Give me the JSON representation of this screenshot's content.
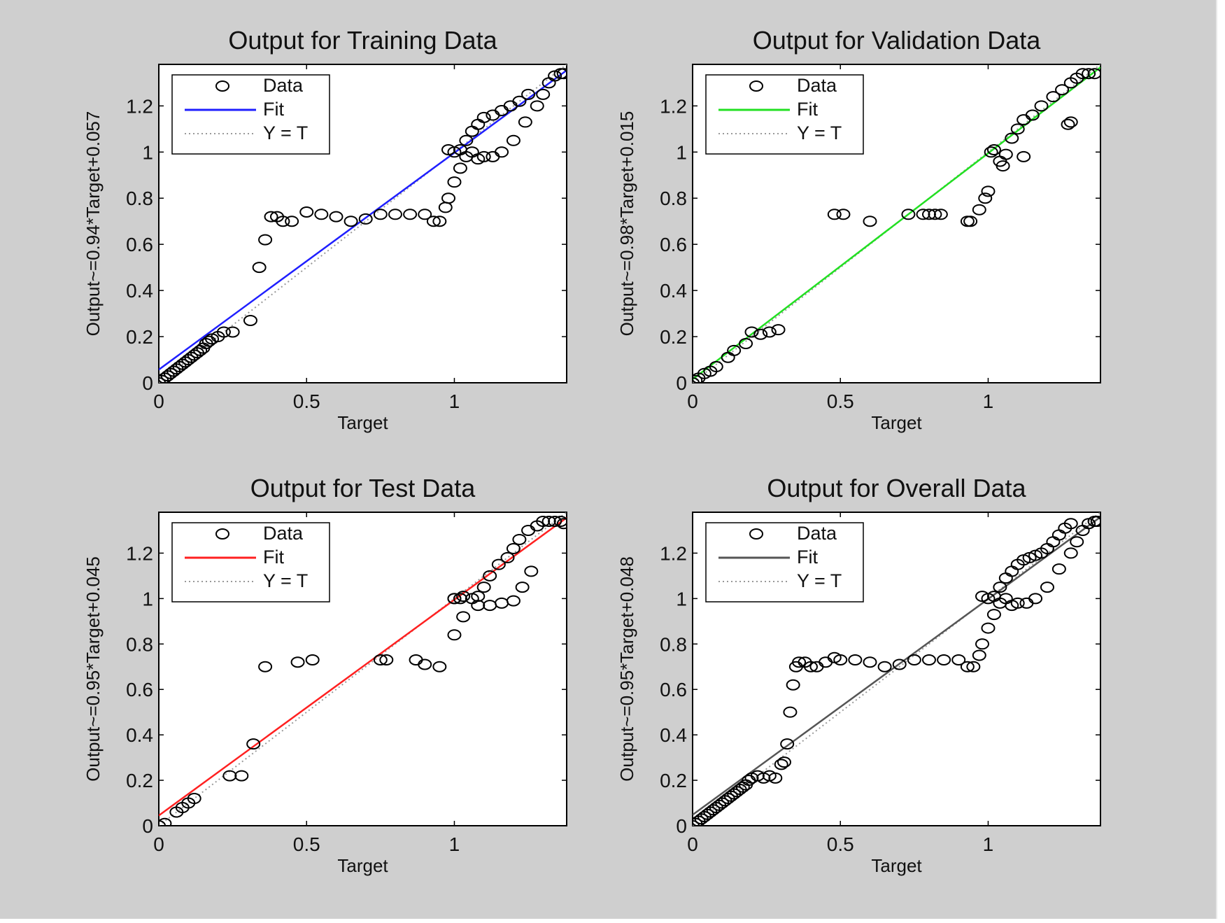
{
  "chart_data": [
    {
      "type": "scatter",
      "title": "Output for Training Data",
      "xlabel": "Target",
      "ylabel": "Output~=0.94*Target+0.057",
      "xlim": [
        0,
        1.38
      ],
      "ylim": [
        0,
        1.38
      ],
      "xticks": [
        0,
        0.5,
        1
      ],
      "yticks": [
        0,
        0.2,
        0.4,
        0.6,
        0.8,
        1,
        1.2
      ],
      "grid": false,
      "legend": {
        "placement": "top-left",
        "entries": [
          "Data",
          "Fit",
          "Y = T"
        ]
      },
      "fit": {
        "slope": 0.94,
        "intercept": 0.057,
        "color": "#1f1fff"
      },
      "series": [
        {
          "name": "Data",
          "marker": "circle",
          "color": "#000000",
          "x": [
            0,
            0.01,
            0.02,
            0.03,
            0.04,
            0.05,
            0.06,
            0.07,
            0.08,
            0.09,
            0.1,
            0.11,
            0.12,
            0.13,
            0.14,
            0.15,
            0.16,
            0.17,
            0.18,
            0.2,
            0.22,
            0.25,
            0.31,
            0.34,
            0.36,
            0.38,
            0.4,
            0.42,
            0.45,
            0.5,
            0.55,
            0.6,
            0.65,
            0.7,
            0.75,
            0.8,
            0.85,
            0.9,
            0.93,
            0.95,
            0.97,
            0.98,
            1.0,
            1.02,
            1.04,
            1.06,
            1.08,
            1.1,
            1.13,
            1.16,
            1.2,
            1.24,
            1.28,
            1.3,
            1.32,
            1.34,
            1.36,
            1.37,
            0.98,
            1.0,
            1.02,
            1.04,
            1.06,
            1.08,
            1.1,
            1.13,
            1.16,
            1.19,
            1.22,
            1.25
          ],
          "y": [
            0,
            0.01,
            0.02,
            0.03,
            0.04,
            0.05,
            0.06,
            0.07,
            0.08,
            0.09,
            0.1,
            0.11,
            0.12,
            0.13,
            0.14,
            0.15,
            0.17,
            0.18,
            0.19,
            0.2,
            0.22,
            0.22,
            0.27,
            0.5,
            0.62,
            0.72,
            0.72,
            0.7,
            0.7,
            0.74,
            0.73,
            0.72,
            0.7,
            0.71,
            0.73,
            0.73,
            0.73,
            0.73,
            0.7,
            0.7,
            0.76,
            0.8,
            0.87,
            0.93,
            0.98,
            1.0,
            0.97,
            0.98,
            0.98,
            1.0,
            1.05,
            1.13,
            1.2,
            1.25,
            1.3,
            1.33,
            1.34,
            1.34,
            1.01,
            1.0,
            1.01,
            1.05,
            1.09,
            1.12,
            1.15,
            1.16,
            1.18,
            1.2,
            1.22,
            1.25
          ]
        }
      ]
    },
    {
      "type": "scatter",
      "title": "Output for Validation Data",
      "xlabel": "Target",
      "ylabel": "Output~=0.98*Target+0.015",
      "xlim": [
        0,
        1.38
      ],
      "ylim": [
        0,
        1.38
      ],
      "xticks": [
        0,
        0.5,
        1
      ],
      "yticks": [
        0,
        0.2,
        0.4,
        0.6,
        0.8,
        1,
        1.2
      ],
      "grid": false,
      "legend": {
        "placement": "top-left",
        "entries": [
          "Data",
          "Fit",
          "Y = T"
        ]
      },
      "fit": {
        "slope": 0.98,
        "intercept": 0.015,
        "color": "#22e022"
      },
      "series": [
        {
          "name": "Data",
          "marker": "circle",
          "color": "#000000",
          "x": [
            0,
            0.01,
            0.02,
            0.04,
            0.06,
            0.08,
            0.12,
            0.14,
            0.18,
            0.2,
            0.23,
            0.26,
            0.29,
            0.48,
            0.51,
            0.6,
            0.73,
            0.78,
            0.8,
            0.82,
            0.84,
            0.93,
            0.94,
            0.97,
            0.99,
            1.0,
            1.01,
            1.02,
            1.04,
            1.05,
            1.06,
            1.08,
            1.1,
            1.12,
            1.15,
            1.18,
            1.22,
            1.25,
            1.28,
            1.3,
            1.32,
            1.34,
            1.36,
            1.27,
            1.28,
            1.12
          ],
          "y": [
            0,
            0.01,
            0.02,
            0.04,
            0.05,
            0.07,
            0.11,
            0.14,
            0.17,
            0.22,
            0.21,
            0.22,
            0.23,
            0.73,
            0.73,
            0.7,
            0.73,
            0.73,
            0.73,
            0.73,
            0.73,
            0.7,
            0.7,
            0.75,
            0.8,
            0.83,
            1.0,
            1.01,
            0.96,
            0.94,
            0.99,
            1.06,
            1.1,
            1.14,
            1.16,
            1.2,
            1.24,
            1.27,
            1.3,
            1.32,
            1.34,
            1.34,
            1.34,
            1.12,
            1.13,
            0.98
          ]
        }
      ]
    },
    {
      "type": "scatter",
      "title": "Output for Test Data",
      "xlabel": "Target",
      "ylabel": "Output~=0.95*Target+0.045",
      "xlim": [
        0,
        1.38
      ],
      "ylim": [
        0,
        1.38
      ],
      "xticks": [
        0,
        0.5,
        1
      ],
      "yticks": [
        0,
        0.2,
        0.4,
        0.6,
        0.8,
        1,
        1.2
      ],
      "grid": false,
      "legend": {
        "placement": "top-left",
        "entries": [
          "Data",
          "Fit",
          "Y = T"
        ]
      },
      "fit": {
        "slope": 0.95,
        "intercept": 0.045,
        "color": "#ff2020"
      },
      "series": [
        {
          "name": "Data",
          "marker": "circle",
          "color": "#000000",
          "x": [
            0,
            0.02,
            0.06,
            0.08,
            0.1,
            0.12,
            0.24,
            0.28,
            0.32,
            0.36,
            0.47,
            0.52,
            0.75,
            0.77,
            0.87,
            0.9,
            0.95,
            1.0,
            1.0,
            1.02,
            1.03,
            1.06,
            1.08,
            1.1,
            1.12,
            1.15,
            1.18,
            1.2,
            1.22,
            1.25,
            1.28,
            1.3,
            1.32,
            1.34,
            1.36,
            1.37,
            1.0,
            1.03,
            1.08,
            1.12,
            1.16,
            1.2,
            1.23,
            1.26
          ],
          "y": [
            0,
            0.01,
            0.06,
            0.08,
            0.1,
            0.12,
            0.22,
            0.22,
            0.36,
            0.7,
            0.72,
            0.73,
            0.73,
            0.73,
            0.73,
            0.71,
            0.7,
            0.84,
            1.0,
            1.0,
            0.92,
            1.0,
            0.97,
            1.05,
            1.1,
            1.15,
            1.18,
            1.22,
            1.26,
            1.3,
            1.32,
            1.34,
            1.34,
            1.34,
            1.34,
            1.33,
            1.0,
            1.01,
            1.01,
            0.97,
            0.98,
            0.99,
            1.05,
            1.12
          ]
        }
      ]
    },
    {
      "type": "scatter",
      "title": "Output for Overall Data",
      "xlabel": "Target",
      "ylabel": "Output~=0.95*Target+0.048",
      "xlim": [
        0,
        1.38
      ],
      "ylim": [
        0,
        1.38
      ],
      "xticks": [
        0,
        0.5,
        1
      ],
      "yticks": [
        0,
        0.2,
        0.4,
        0.6,
        0.8,
        1,
        1.2
      ],
      "grid": false,
      "legend": {
        "placement": "top-left",
        "entries": [
          "Data",
          "Fit",
          "Y = T"
        ]
      },
      "fit": {
        "slope": 0.95,
        "intercept": 0.048,
        "color": "#555555"
      },
      "series": [
        {
          "name": "Data",
          "marker": "circle",
          "color": "#000000",
          "x": [
            0,
            0.01,
            0.02,
            0.03,
            0.04,
            0.05,
            0.06,
            0.07,
            0.08,
            0.09,
            0.1,
            0.11,
            0.12,
            0.13,
            0.14,
            0.15,
            0.16,
            0.17,
            0.18,
            0.19,
            0.2,
            0.22,
            0.24,
            0.26,
            0.28,
            0.3,
            0.31,
            0.32,
            0.33,
            0.34,
            0.35,
            0.36,
            0.38,
            0.4,
            0.42,
            0.45,
            0.48,
            0.5,
            0.55,
            0.6,
            0.65,
            0.7,
            0.75,
            0.8,
            0.85,
            0.9,
            0.93,
            0.95,
            0.97,
            0.98,
            1.0,
            1.02,
            1.04,
            1.06,
            1.08,
            1.1,
            1.13,
            1.16,
            1.2,
            1.24,
            1.28,
            1.3,
            1.32,
            1.34,
            1.36,
            1.37,
            0.98,
            1.0,
            1.02,
            1.04,
            1.06,
            1.08,
            1.1,
            1.12,
            1.14,
            1.16,
            1.18,
            1.2,
            1.22,
            1.24,
            1.26,
            1.28
          ],
          "y": [
            0,
            0.01,
            0.02,
            0.03,
            0.04,
            0.05,
            0.06,
            0.07,
            0.08,
            0.09,
            0.1,
            0.11,
            0.12,
            0.13,
            0.14,
            0.15,
            0.16,
            0.17,
            0.18,
            0.2,
            0.21,
            0.22,
            0.21,
            0.22,
            0.21,
            0.27,
            0.28,
            0.36,
            0.5,
            0.62,
            0.7,
            0.72,
            0.72,
            0.7,
            0.7,
            0.72,
            0.74,
            0.73,
            0.73,
            0.72,
            0.7,
            0.71,
            0.73,
            0.73,
            0.73,
            0.73,
            0.7,
            0.7,
            0.75,
            0.8,
            0.87,
            0.93,
            0.98,
            1.0,
            0.97,
            0.98,
            0.98,
            1.0,
            1.05,
            1.13,
            1.2,
            1.25,
            1.3,
            1.33,
            1.34,
            1.34,
            1.01,
            1.0,
            1.01,
            1.05,
            1.09,
            1.12,
            1.15,
            1.17,
            1.18,
            1.19,
            1.2,
            1.22,
            1.25,
            1.28,
            1.31,
            1.33
          ]
        }
      ]
    }
  ]
}
